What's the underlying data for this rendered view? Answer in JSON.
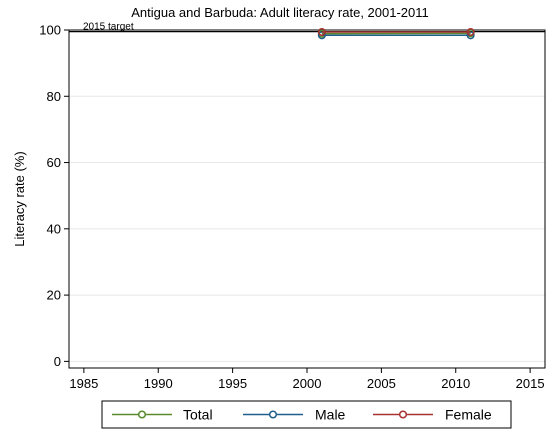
{
  "chart_data": {
    "type": "line",
    "title": "Antigua and Barbuda: Adult literacy rate, 2001-2011",
    "xlabel": "",
    "ylabel": "Literacy rate (%)",
    "xlim": [
      1984,
      2016
    ],
    "ylim": [
      -2,
      100
    ],
    "xticks": [
      1985,
      1990,
      1995,
      2000,
      2005,
      2010,
      2015
    ],
    "yticks": [
      0,
      20,
      40,
      60,
      80,
      100
    ],
    "grid": true,
    "reference_line": {
      "value": 99.5,
      "label": "2015 target"
    },
    "legend_position": "bottom",
    "x": [
      2001,
      2011
    ],
    "series": [
      {
        "name": "Total",
        "values": [
          98.9,
          99.0
        ],
        "color": "#5b8a2e"
      },
      {
        "name": "Male",
        "values": [
          98.4,
          98.4
        ],
        "color": "#1f5f8b"
      },
      {
        "name": "Female",
        "values": [
          99.4,
          99.4
        ],
        "color": "#a83232"
      }
    ]
  }
}
